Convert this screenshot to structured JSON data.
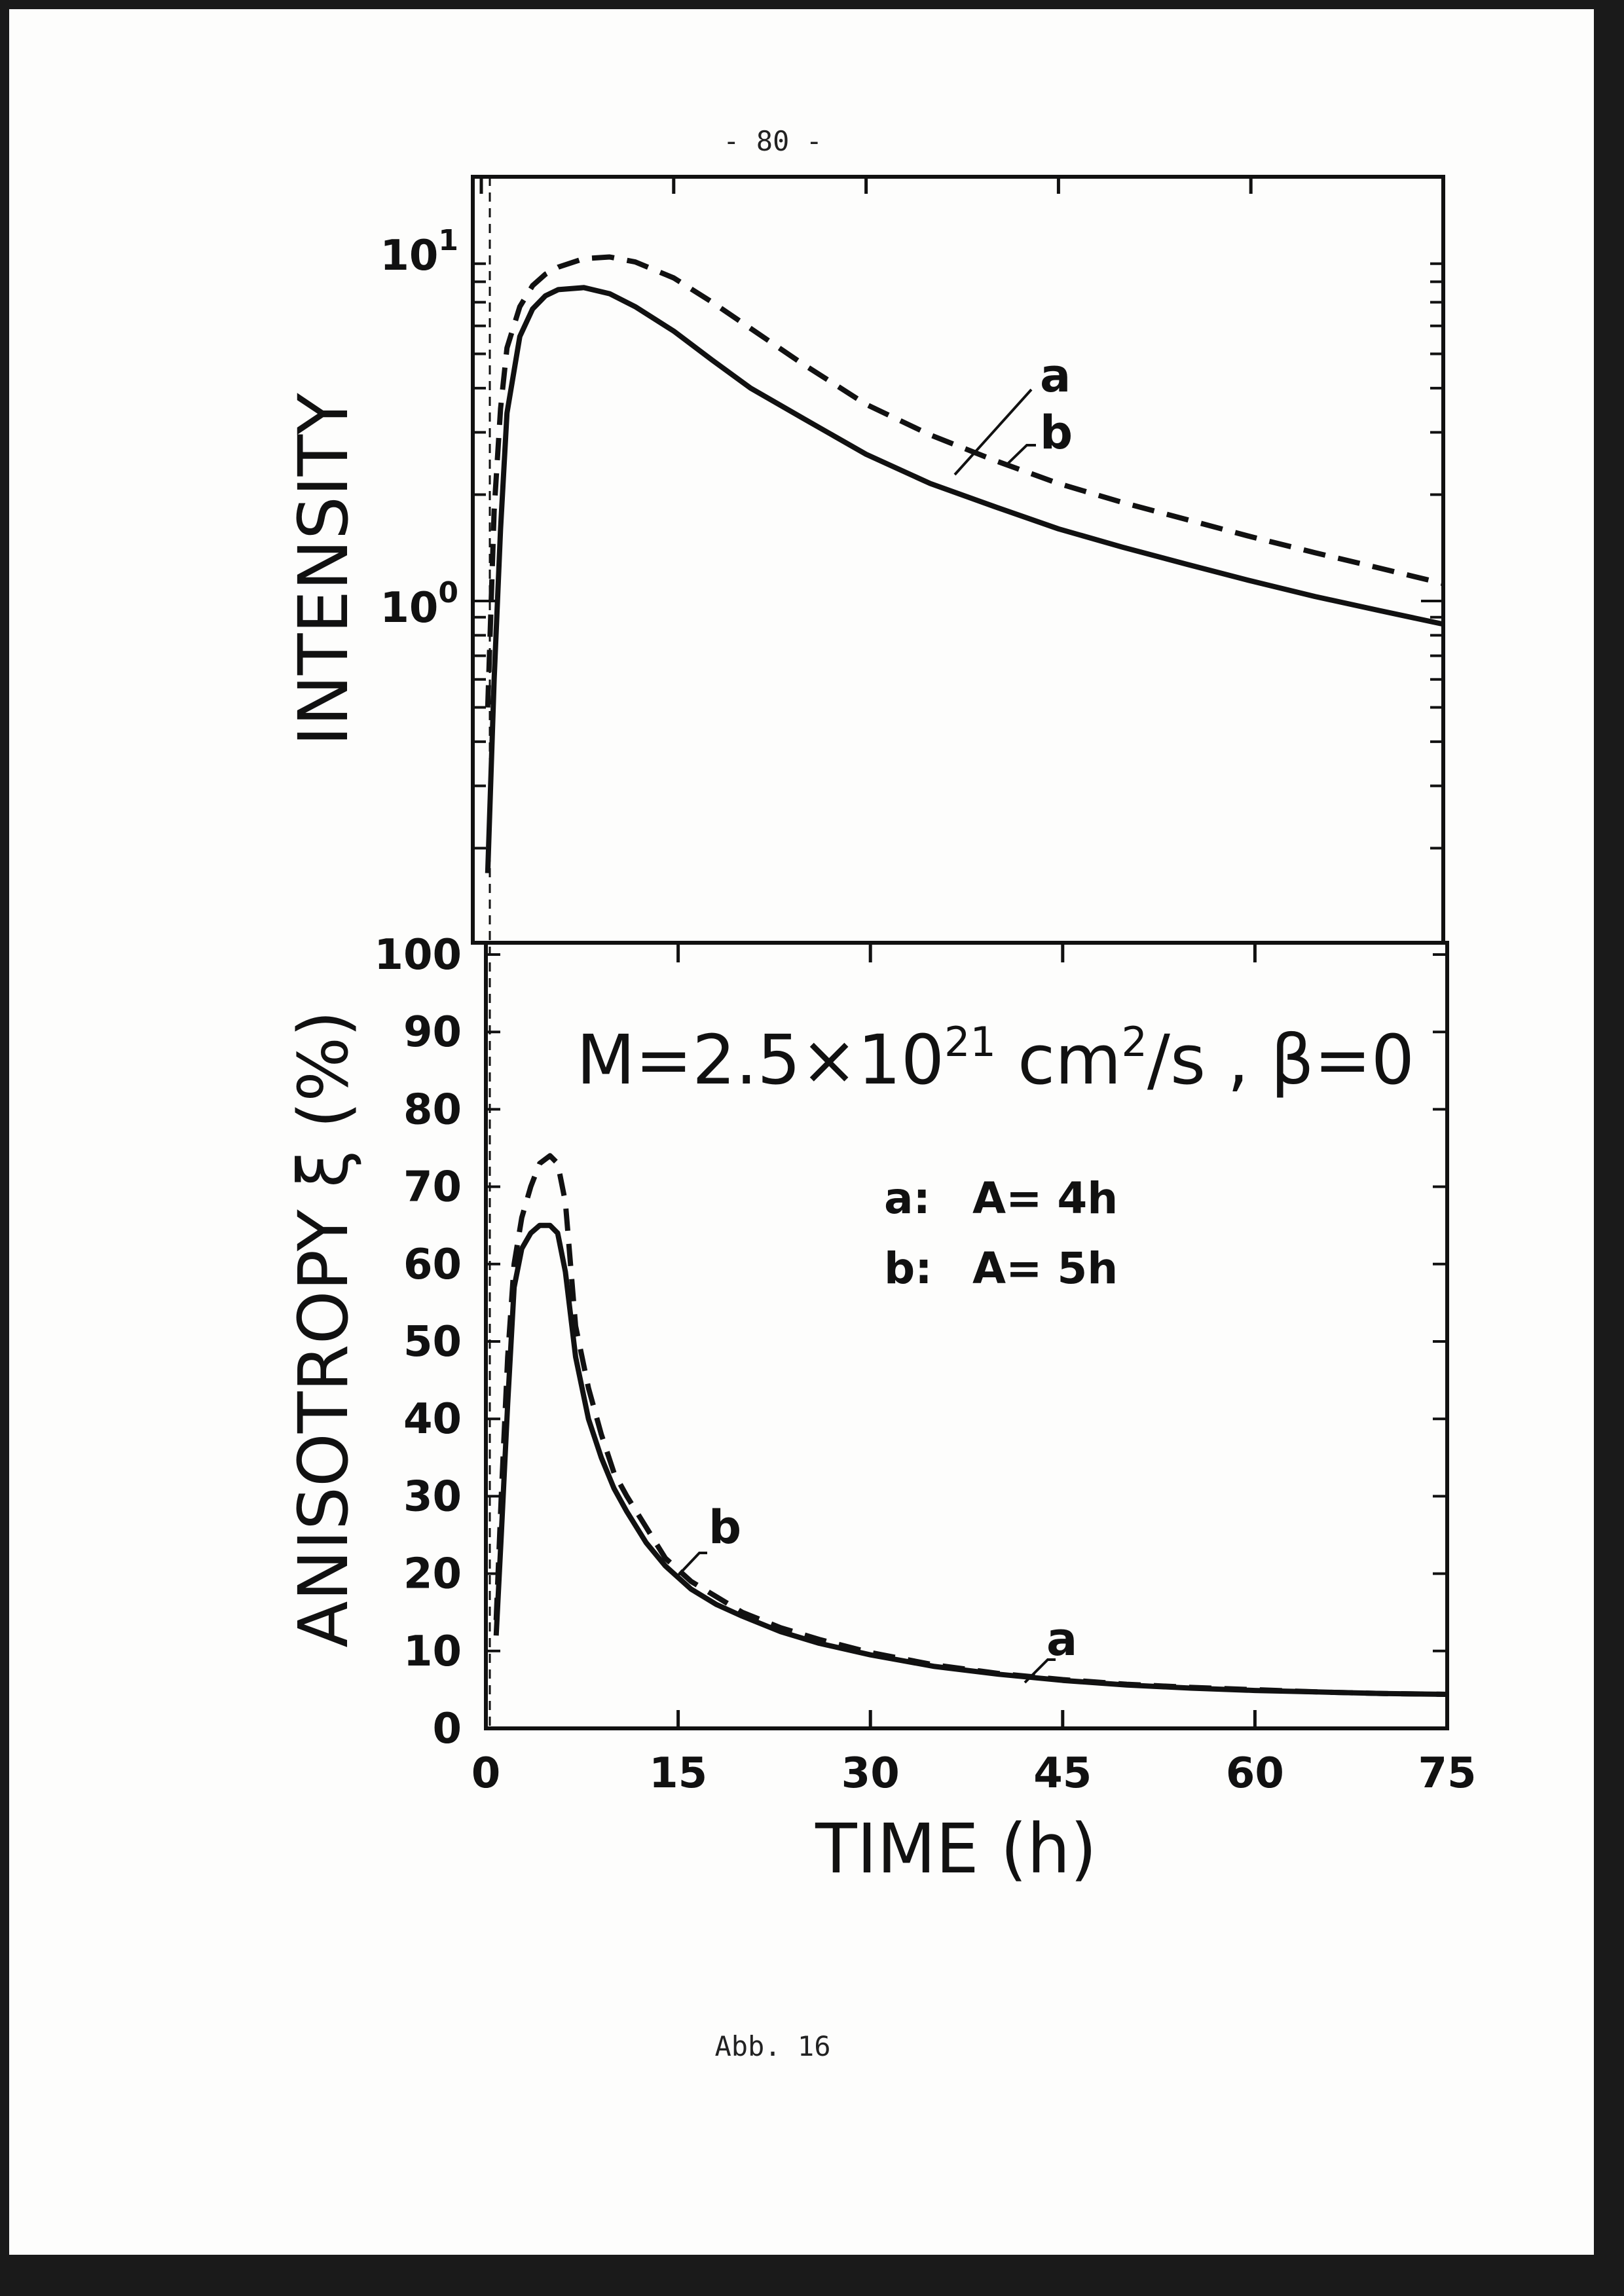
{
  "page": {
    "number": "- 80 -",
    "caption": "Abb. 16"
  },
  "annotation": {
    "text_main": "M=2.5×10",
    "text_exp": "21",
    "text_unit": " cm",
    "text_unit_exp": "2",
    "text_tail": "/s , β=0"
  },
  "key": {
    "a": {
      "tag": "a:",
      "text": "A= 4h"
    },
    "b": {
      "tag": "b:",
      "text": "A= 5h"
    }
  },
  "chart_data": [
    {
      "type": "line",
      "ylabel": "INTENSITY",
      "yscale": "log",
      "ylim": [
        0.1,
        10
      ],
      "xlim": [
        0,
        75
      ],
      "yticklabels": [
        {
          "base": "10",
          "exp": "1",
          "value": 10
        },
        {
          "base": "10",
          "exp": "0",
          "value": 1
        }
      ],
      "curve_labels": [
        "a",
        "b"
      ],
      "series": [
        {
          "name": "a",
          "style": "solid",
          "x": [
            0.5,
            1.0,
            1.5,
            2.0,
            3.0,
            4.0,
            5.0,
            6.0,
            8.0,
            10,
            12,
            15,
            18,
            21,
            25,
            30,
            35,
            40,
            45,
            50,
            55,
            60,
            65,
            70,
            75
          ],
          "y": [
            0.17,
            0.6,
            1.6,
            3.4,
            5.6,
            6.7,
            7.3,
            7.6,
            7.7,
            7.4,
            6.8,
            5.8,
            4.8,
            4.0,
            3.3,
            2.6,
            2.15,
            1.85,
            1.6,
            1.42,
            1.27,
            1.14,
            1.03,
            0.94,
            0.86
          ]
        },
        {
          "name": "b",
          "style": "dashed",
          "x": [
            0.5,
            1.0,
            1.5,
            2.0,
            3.0,
            4.0,
            5.0,
            6.0,
            8.0,
            10,
            12,
            15,
            18,
            21,
            25,
            30,
            35,
            40,
            45,
            50,
            55,
            60,
            65,
            70,
            75
          ],
          "y": [
            0.5,
            1.8,
            3.5,
            5.2,
            6.8,
            7.8,
            8.4,
            8.8,
            9.3,
            9.4,
            9.1,
            8.2,
            7.0,
            5.9,
            4.7,
            3.6,
            2.95,
            2.5,
            2.15,
            1.9,
            1.7,
            1.52,
            1.37,
            1.24,
            1.12
          ]
        }
      ]
    },
    {
      "type": "line",
      "ylabel": "ANISOTROPY ξ (%)",
      "xlabel": "TIME (h)",
      "xlim": [
        0,
        75
      ],
      "ylim": [
        0,
        100
      ],
      "xticks": [
        0,
        15,
        30,
        45,
        60,
        75
      ],
      "yticks": [
        0,
        10,
        20,
        30,
        40,
        50,
        60,
        70,
        80,
        90,
        100
      ],
      "curve_labels": [
        "a",
        "b"
      ],
      "series": [
        {
          "name": "a",
          "style": "solid",
          "x": [
            0.8,
            1.2,
            1.7,
            2.2,
            2.8,
            3.5,
            4.2,
            5.0,
            5.6,
            6.2,
            7.0,
            8.0,
            9.0,
            10,
            11,
            12.5,
            14,
            16,
            18,
            20,
            23,
            26,
            30,
            35,
            40,
            45,
            50,
            55,
            60,
            65,
            70,
            75
          ],
          "y": [
            12,
            25,
            42,
            57,
            62,
            64,
            65,
            65,
            64,
            59,
            48,
            40,
            35,
            31,
            28,
            24,
            21,
            18,
            16,
            14.5,
            12.5,
            11,
            9.5,
            8,
            7,
            6.2,
            5.6,
            5.2,
            4.9,
            4.7,
            4.5,
            4.4
          ]
        },
        {
          "name": "b",
          "style": "dashed",
          "x": [
            0.8,
            1.2,
            1.7,
            2.2,
            2.8,
            3.5,
            4.2,
            5.0,
            5.6,
            6.2,
            7.0,
            8.0,
            9.0,
            10,
            11,
            12.5,
            14,
            16,
            18,
            20,
            23,
            26,
            30,
            35,
            40,
            45,
            50,
            55,
            60,
            65,
            70,
            75
          ],
          "y": [
            14,
            30,
            48,
            60,
            66,
            70,
            73,
            74,
            73,
            68,
            52,
            44,
            38,
            33,
            30,
            26,
            22,
            19,
            17,
            15,
            13,
            11.5,
            9.8,
            8.2,
            7.1,
            6.3,
            5.7,
            5.3,
            5,
            4.7,
            4.5,
            4.4
          ]
        }
      ]
    }
  ]
}
